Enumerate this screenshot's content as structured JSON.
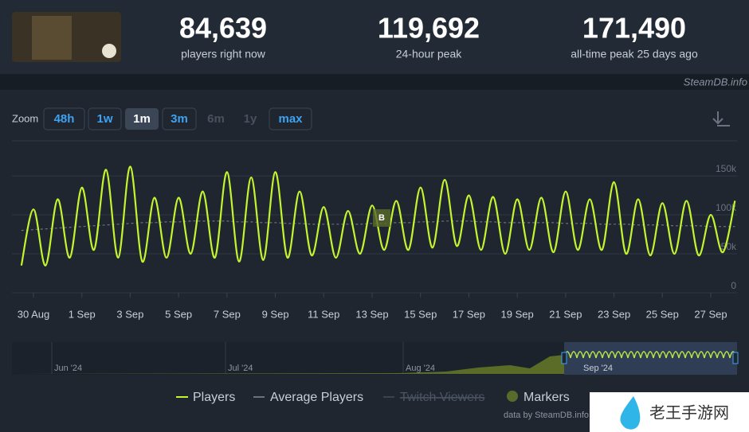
{
  "stats": [
    {
      "value": "84,639",
      "label": "players right now"
    },
    {
      "value": "119,692",
      "label": "24-hour peak"
    },
    {
      "value": "171,490",
      "label": "all-time peak 25 days ago"
    }
  ],
  "brand": "SteamDB.info",
  "zoom": {
    "label": "Zoom",
    "buttons": [
      "48h",
      "1w",
      "1m",
      "3m",
      "6m",
      "1y",
      "max"
    ]
  },
  "navigator": {
    "labels": [
      "Jun '24",
      "Jul '24",
      "Aug '24",
      "Sep '24"
    ]
  },
  "credit": "data by SteamDB.info",
  "watermark": "老王手游网",
  "chart_data": {
    "type": "line",
    "categories": [
      null,
      "30 Aug",
      null,
      null,
      null,
      "1 Sep",
      null,
      null,
      null,
      "3 Sep",
      null,
      null,
      null,
      "5 Sep",
      null,
      null,
      null,
      "7 Sep",
      null,
      null,
      null,
      "9 Sep",
      null,
      null,
      null,
      "11 Sep",
      null,
      null,
      null,
      "13 Sep",
      null,
      null,
      null,
      "15 Sep",
      null,
      null,
      null,
      "17 Sep",
      null,
      null,
      null,
      "19 Sep",
      null,
      null,
      null,
      "21 Sep",
      null,
      null,
      null,
      "23 Sep",
      null,
      null,
      null,
      "25 Sep",
      null,
      null,
      null,
      "27 Sep",
      null,
      null
    ],
    "series": [
      {
        "name": "Players",
        "color": "#c3f52e",
        "values": [
          35000,
          107000,
          35000,
          120000,
          45000,
          135000,
          55000,
          158000,
          45000,
          162000,
          40000,
          122000,
          45000,
          122000,
          50000,
          130000,
          45000,
          155000,
          40000,
          148000,
          42000,
          155000,
          45000,
          130000,
          48000,
          110000,
          45000,
          105000,
          50000,
          112000,
          55000,
          118000,
          55000,
          135000,
          58000,
          145000,
          60000,
          125000,
          55000,
          123000,
          50000,
          120000,
          55000,
          122000,
          52000,
          130000,
          55000,
          120000,
          55000,
          142000,
          50000,
          120000,
          48000,
          115000,
          50000,
          118000,
          48000,
          100000,
          52000,
          118000
        ]
      },
      {
        "name": "Average Players",
        "color": "#6b7380",
        "values": [
          80000,
          81000,
          82000,
          83000,
          84000,
          85000,
          86000,
          87000,
          88000,
          89000,
          90000,
          90000,
          91000,
          91000,
          92000,
          92000,
          92000,
          92000,
          91000,
          91000,
          90000,
          90000,
          89000,
          89000,
          88000,
          88000,
          88000,
          88000,
          88000,
          89000,
          89000,
          90000,
          90000,
          91000,
          91000,
          92000,
          92000,
          92000,
          91000,
          91000,
          90000,
          90000,
          90000,
          90000,
          90000,
          89000,
          89000,
          89000,
          88000,
          88000,
          88000,
          87000,
          87000,
          87000,
          86000,
          86000,
          86000,
          85000,
          85000,
          85000
        ]
      }
    ],
    "legend_extra": [
      "Twitch Viewers",
      "Markers"
    ],
    "marker_labels": [
      "B"
    ],
    "ylim": [
      0,
      195000
    ],
    "yticks": [
      {
        "value": 0,
        "label": "0"
      },
      {
        "value": 50000,
        "label": "50k"
      },
      {
        "value": 100000,
        "label": "100k"
      },
      {
        "value": 150000,
        "label": "150k"
      }
    ],
    "grid": true
  }
}
